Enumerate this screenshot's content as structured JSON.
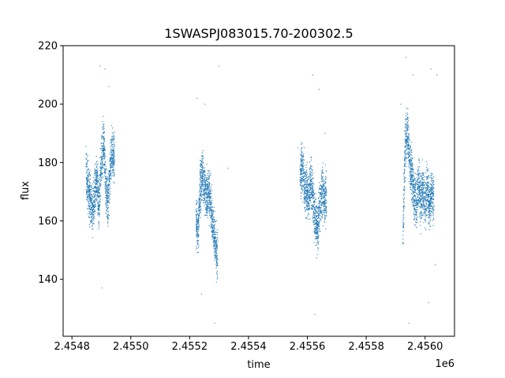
{
  "chart_data": {
    "type": "scatter",
    "title": "1SWASPJ083015.70-200302.5",
    "xlabel": "time",
    "ylabel": "flux",
    "offset_label": "1e6",
    "xlim": [
      2454770,
      2456100
    ],
    "ylim": [
      120.5,
      220
    ],
    "x_ticks": [
      2454800,
      2455000,
      2455200,
      2455400,
      2455600,
      2455800,
      2456000
    ],
    "x_tick_labels": [
      "2.4548",
      "2.4550",
      "2.4552",
      "2.4554",
      "2.4556",
      "2.4558",
      "2.4560"
    ],
    "y_ticks": [
      140,
      160,
      180,
      200,
      220
    ],
    "y_tick_labels": [
      "140",
      "160",
      "180",
      "200",
      "220"
    ],
    "grid": false,
    "marker_color": "#1f77b4",
    "series": [
      {
        "segments": [
          {
            "x": [
              2454848,
              2454855,
              2454862,
              2454870,
              2454878,
              2454885,
              2454892,
              2454900,
              2454908,
              2454915,
              2454922,
              2454930,
              2454938,
              2454945
            ],
            "y": [
              176,
              172,
              168,
              163,
              170,
              174,
              165,
              180,
              188,
              171,
              166,
              178,
              185,
              182
            ],
            "spread": 6
          },
          {
            "x": [
              2455222,
              2455228,
              2455235,
              2455242,
              2455250,
              2455258,
              2455265,
              2455272,
              2455280,
              2455288,
              2455295
            ],
            "y": [
              160,
              155,
              170,
              176,
              172,
              168,
              171,
              165,
              158,
              152,
              148
            ],
            "spread": 6
          },
          {
            "x": [
              2455575,
              2455582,
              2455590,
              2455598,
              2455605,
              2455612,
              2455620,
              2455628,
              2455635,
              2455642,
              2455650,
              2455658,
              2455665
            ],
            "y": [
              176,
              178,
              172,
              170,
              168,
              174,
              166,
              160,
              158,
              165,
              170,
              167,
              168
            ],
            "spread": 6
          },
          {
            "x": [
              2455925,
              2455932,
              2455940,
              2455948,
              2455955,
              2455962,
              2455970,
              2455978,
              2455985,
              2455992,
              2456000,
              2456008,
              2456015,
              2456022,
              2456030
            ],
            "y": [
              156,
              185,
              192,
              180,
              176,
              170,
              165,
              172,
              168,
              170,
              166,
              172,
              165,
              170,
              168
            ],
            "spread": 6
          }
        ],
        "outliers": [
          [
            2454895,
            213
          ],
          [
            2454902,
            137
          ],
          [
            2454912,
            212
          ],
          [
            2454925,
            206
          ],
          [
            2455225,
            202
          ],
          [
            2455240,
            135
          ],
          [
            2455252,
            200
          ],
          [
            2455300,
            213
          ],
          [
            2455285,
            125
          ],
          [
            2455330,
            178
          ],
          [
            2455568,
            185
          ],
          [
            2455618,
            210
          ],
          [
            2455625,
            128
          ],
          [
            2455640,
            205
          ],
          [
            2455660,
            190
          ],
          [
            2455918,
            200
          ],
          [
            2455935,
            216
          ],
          [
            2455945,
            125
          ],
          [
            2455958,
            210
          ],
          [
            2456020,
            212
          ],
          [
            2456040,
            210
          ],
          [
            2456012,
            132
          ],
          [
            2456035,
            145
          ]
        ]
      }
    ]
  }
}
